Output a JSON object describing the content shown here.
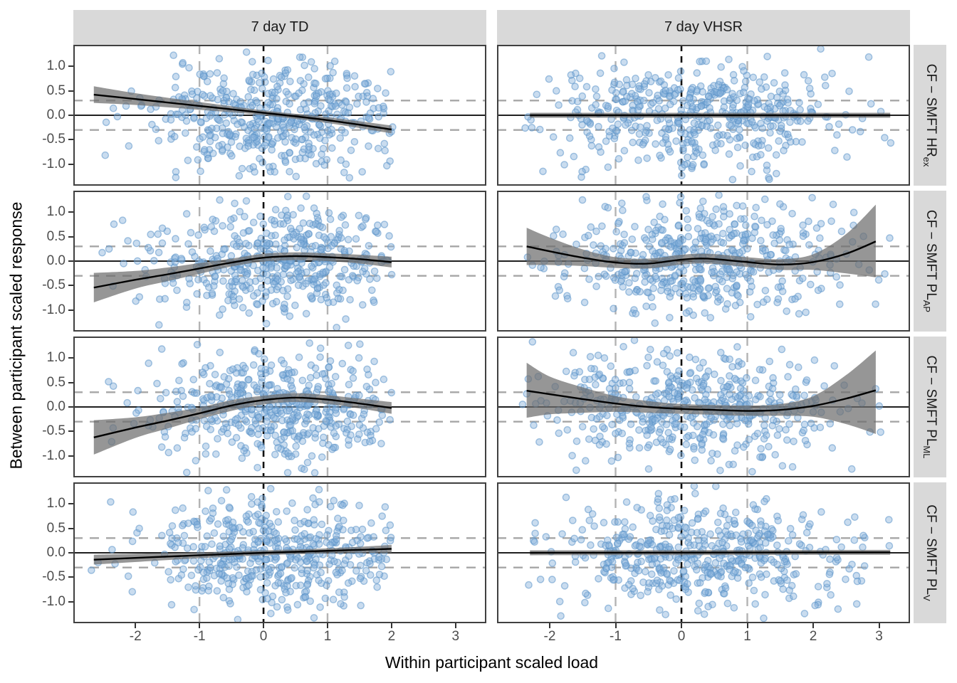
{
  "figure_title": "",
  "chart_data": {
    "type": "scatter",
    "title": "",
    "xlabel": "Within participant scaled load",
    "ylabel": "Between participant scaled response",
    "columns": [
      {
        "label": "7 day TD"
      },
      {
        "label": "7 day VHSR"
      }
    ],
    "rows": [
      {
        "main": "CF − SMFT HR",
        "sub": "ex"
      },
      {
        "main": "CF − SMFT PL",
        "sub": "AP"
      },
      {
        "main": "CF − SMFT PL",
        "sub": "ML"
      },
      {
        "main": "CF − SMFT PL",
        "sub": "V"
      }
    ],
    "x_ticks": [
      {
        "label": "-2",
        "value": -2
      },
      {
        "label": "-1",
        "value": -1
      },
      {
        "label": "0",
        "value": 0
      },
      {
        "label": "1",
        "value": 1
      },
      {
        "label": "2",
        "value": 2
      },
      {
        "label": "3",
        "value": 3
      }
    ],
    "y_ticks": [
      {
        "label": "1.0",
        "value": 1.0
      },
      {
        "label": "0.5",
        "value": 0.5
      },
      {
        "label": "0.0",
        "value": 0.0
      },
      {
        "label": "-0.5",
        "value": -0.5
      },
      {
        "label": "-1.0",
        "value": -1.0
      }
    ],
    "axes": {
      "xlim_td": [
        -2.97,
        3.48
      ],
      "xlim_vhsr": [
        -2.8,
        3.47
      ],
      "ylim": [
        -1.435,
        1.435
      ],
      "grid": "off",
      "legend": "none"
    },
    "reference_lines": {
      "hline_solid": 0,
      "hlines_dashed_gray": [
        0.3,
        -0.3
      ],
      "vline_dashed_black": 0,
      "vlines_dashed_gray": [
        -1,
        1
      ]
    },
    "style": {
      "strip_bg": "#D9D9D9",
      "panel_border": "#404040",
      "point_fill": "#87B1DB",
      "point_stroke": "#5B94C9",
      "ribbon_fill": "#6E6E6E",
      "trend_color": "#000000",
      "hline_solid_color": "#000000",
      "dashed_gray_h": "#A6A6A6",
      "dashed_gray_v": "#B3B3B3",
      "dashed_black_v": "#111111",
      "tick_label_color": "#4D4D4D"
    },
    "panels": [
      {
        "col": 0,
        "row": 0,
        "name": "TD-HRex",
        "trend": [
          [
            -2.65,
            0.42
          ],
          [
            -2,
            0.33
          ],
          [
            -1,
            0.19
          ],
          [
            0,
            0.05
          ],
          [
            1,
            -0.1
          ],
          [
            2,
            -0.29
          ]
        ],
        "ribbon": [
          [
            -2.65,
            0.25,
            0.59
          ],
          [
            -2,
            0.21,
            0.45
          ],
          [
            -1,
            0.11,
            0.27
          ],
          [
            0,
            0.0,
            0.1
          ],
          [
            1,
            -0.16,
            -0.04
          ],
          [
            2,
            -0.37,
            -0.21
          ]
        ],
        "scatter": {
          "n": 470,
          "seed": 11,
          "x_mean": 0.2,
          "x_sd": 1.05,
          "x_min": -2.72,
          "x_max": 2.02,
          "y_mean": -0.02,
          "y_sd": 0.55,
          "y_min": -1.36,
          "y_max": 1.36
        }
      },
      {
        "col": 1,
        "row": 0,
        "name": "VHSR-HRex",
        "trend": [
          [
            -2.3,
            0.0
          ],
          [
            3.17,
            0.0
          ]
        ],
        "ribbon": [
          [
            -2.3,
            -0.05,
            0.05
          ],
          [
            3.17,
            -0.05,
            0.05
          ]
        ],
        "scatter": {
          "n": 500,
          "seed": 22,
          "x_mean": 0.25,
          "x_sd": 1.1,
          "x_min": -2.45,
          "x_max": 3.2,
          "y_mean": 0.0,
          "y_sd": 0.55,
          "y_min": -1.36,
          "y_max": 1.36
        }
      },
      {
        "col": 0,
        "row": 1,
        "name": "TD-PLAP",
        "trend": [
          [
            -2.65,
            -0.54
          ],
          [
            -2,
            -0.38
          ],
          [
            -1.5,
            -0.27
          ],
          [
            -1,
            -0.15
          ],
          [
            -0.5,
            -0.03
          ],
          [
            0,
            0.07
          ],
          [
            0.5,
            0.1
          ],
          [
            1,
            0.08
          ],
          [
            1.5,
            0.04
          ],
          [
            2,
            -0.02
          ]
        ],
        "ribbon": [
          [
            -2.65,
            -0.84,
            -0.24
          ],
          [
            -2,
            -0.56,
            -0.2
          ],
          [
            -1.5,
            -0.41,
            -0.13
          ],
          [
            -1,
            -0.26,
            -0.04
          ],
          [
            -0.5,
            -0.11,
            0.05
          ],
          [
            0,
            -0.01,
            0.15
          ],
          [
            0.5,
            0.02,
            0.18
          ],
          [
            1,
            0.0,
            0.16
          ],
          [
            1.5,
            -0.05,
            0.13
          ],
          [
            2,
            -0.13,
            0.09
          ]
        ],
        "scatter": {
          "n": 470,
          "seed": 33,
          "x_mean": 0.2,
          "x_sd": 1.05,
          "x_min": -2.72,
          "x_max": 2.02,
          "y_mean": -0.02,
          "y_sd": 0.55,
          "y_min": -1.36,
          "y_max": 1.36
        }
      },
      {
        "col": 1,
        "row": 1,
        "name": "VHSR-PLAP",
        "trend": [
          [
            -2.35,
            0.3
          ],
          [
            -2,
            0.2
          ],
          [
            -1.5,
            0.07
          ],
          [
            -1,
            -0.03
          ],
          [
            -0.5,
            -0.05
          ],
          [
            0,
            0.03
          ],
          [
            0.4,
            0.05
          ],
          [
            1,
            -0.02
          ],
          [
            1.5,
            -0.07
          ],
          [
            2,
            -0.02
          ],
          [
            2.5,
            0.15
          ],
          [
            2.95,
            0.4
          ]
        ],
        "ribbon": [
          [
            -2.35,
            -0.08,
            0.68
          ],
          [
            -2,
            -0.08,
            0.48
          ],
          [
            -1.5,
            -0.1,
            0.24
          ],
          [
            -1,
            -0.14,
            0.08
          ],
          [
            -0.5,
            -0.15,
            0.05
          ],
          [
            0,
            -0.07,
            0.13
          ],
          [
            0.4,
            -0.05,
            0.15
          ],
          [
            1,
            -0.12,
            0.08
          ],
          [
            1.5,
            -0.18,
            0.04
          ],
          [
            2,
            -0.18,
            0.14
          ],
          [
            2.5,
            -0.25,
            0.55
          ],
          [
            2.95,
            -0.33,
            1.15
          ]
        ],
        "scatter": {
          "n": 500,
          "seed": 44,
          "x_mean": 0.25,
          "x_sd": 1.1,
          "x_min": -2.45,
          "x_max": 3.2,
          "y_mean": 0.0,
          "y_sd": 0.55,
          "y_min": -1.36,
          "y_max": 1.36
        }
      },
      {
        "col": 0,
        "row": 2,
        "name": "TD-PLML",
        "trend": [
          [
            -2.65,
            -0.62
          ],
          [
            -2,
            -0.42
          ],
          [
            -1.5,
            -0.28
          ],
          [
            -1,
            -0.13
          ],
          [
            -0.5,
            0.03
          ],
          [
            0,
            0.14
          ],
          [
            0.5,
            0.19
          ],
          [
            1,
            0.15
          ],
          [
            1.5,
            0.07
          ],
          [
            2,
            -0.02
          ]
        ],
        "ribbon": [
          [
            -2.65,
            -0.97,
            -0.27
          ],
          [
            -2,
            -0.63,
            -0.21
          ],
          [
            -1.5,
            -0.44,
            -0.12
          ],
          [
            -1,
            -0.25,
            -0.01
          ],
          [
            -0.5,
            -0.08,
            0.14
          ],
          [
            0,
            0.05,
            0.23
          ],
          [
            0.5,
            0.1,
            0.28
          ],
          [
            1,
            0.06,
            0.24
          ],
          [
            1.5,
            -0.03,
            0.17
          ],
          [
            2,
            -0.14,
            0.1
          ]
        ],
        "scatter": {
          "n": 470,
          "seed": 55,
          "x_mean": 0.2,
          "x_sd": 1.05,
          "x_min": -2.72,
          "x_max": 2.02,
          "y_mean": -0.02,
          "y_sd": 0.55,
          "y_min": -1.36,
          "y_max": 1.36
        }
      },
      {
        "col": 1,
        "row": 2,
        "name": "VHSR-PLML",
        "trend": [
          [
            -2.35,
            0.33
          ],
          [
            -2,
            0.26
          ],
          [
            -1.5,
            0.16
          ],
          [
            -1,
            0.07
          ],
          [
            -0.5,
            0.0
          ],
          [
            0,
            -0.04
          ],
          [
            0.5,
            -0.06
          ],
          [
            1,
            -0.08
          ],
          [
            1.5,
            -0.06
          ],
          [
            2,
            0.02
          ],
          [
            2.5,
            0.17
          ],
          [
            2.95,
            0.34
          ]
        ],
        "ribbon": [
          [
            -2.35,
            -0.22,
            0.9
          ],
          [
            -2,
            -0.15,
            0.62
          ],
          [
            -1.5,
            -0.12,
            0.4
          ],
          [
            -1,
            -0.1,
            0.22
          ],
          [
            -0.5,
            -0.12,
            0.12
          ],
          [
            0,
            -0.14,
            0.06
          ],
          [
            0.5,
            -0.16,
            0.04
          ],
          [
            1,
            -0.18,
            0.03
          ],
          [
            1.5,
            -0.18,
            0.06
          ],
          [
            2,
            -0.2,
            0.22
          ],
          [
            2.5,
            -0.35,
            0.65
          ],
          [
            2.95,
            -0.55,
            1.15
          ]
        ],
        "scatter": {
          "n": 500,
          "seed": 66,
          "x_mean": 0.25,
          "x_sd": 1.1,
          "x_min": -2.45,
          "x_max": 3.2,
          "y_mean": 0.0,
          "y_sd": 0.55,
          "y_min": -1.36,
          "y_max": 1.36
        }
      },
      {
        "col": 0,
        "row": 3,
        "name": "TD-PLV",
        "trend": [
          [
            -2.65,
            -0.14
          ],
          [
            -1,
            -0.05
          ],
          [
            0,
            0.0
          ],
          [
            1,
            0.04
          ],
          [
            2,
            0.08
          ]
        ],
        "ribbon": [
          [
            -2.65,
            -0.24,
            -0.04
          ],
          [
            -1,
            -0.11,
            0.01
          ],
          [
            0,
            -0.05,
            0.05
          ],
          [
            1,
            -0.01,
            0.09
          ],
          [
            2,
            0.0,
            0.16
          ]
        ],
        "scatter": {
          "n": 470,
          "seed": 77,
          "x_mean": 0.2,
          "x_sd": 1.05,
          "x_min": -2.72,
          "x_max": 2.02,
          "y_mean": -0.02,
          "y_sd": 0.55,
          "y_min": -1.36,
          "y_max": 1.36
        }
      },
      {
        "col": 1,
        "row": 3,
        "name": "VHSR-PLV",
        "trend": [
          [
            -2.3,
            0.0
          ],
          [
            3.17,
            0.01
          ]
        ],
        "ribbon": [
          [
            -2.3,
            -0.05,
            0.05
          ],
          [
            3.17,
            -0.04,
            0.06
          ]
        ],
        "scatter": {
          "n": 500,
          "seed": 88,
          "x_mean": 0.25,
          "x_sd": 1.1,
          "x_min": -2.45,
          "x_max": 3.2,
          "y_mean": 0.0,
          "y_sd": 0.55,
          "y_min": -1.36,
          "y_max": 1.36
        }
      }
    ]
  }
}
